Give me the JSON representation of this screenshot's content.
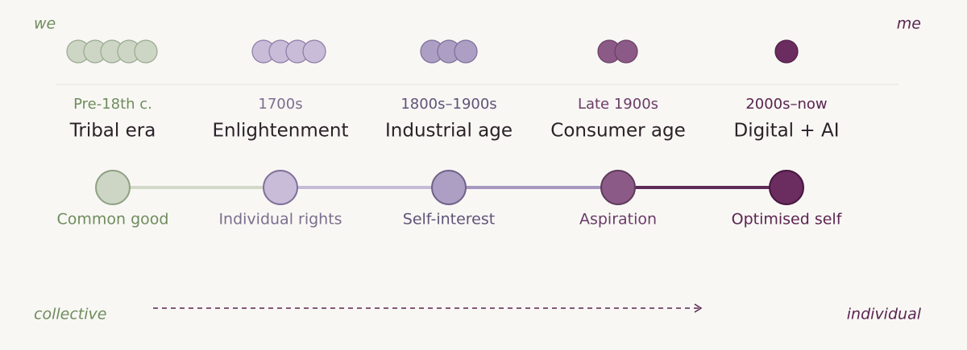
{
  "corners": {
    "top_left": "we",
    "top_right": "me",
    "bottom_left": "collective",
    "bottom_right": "individual"
  },
  "eras": [
    {
      "period": "Pre-18th c.",
      "name": "Tribal era",
      "value": "Common good"
    },
    {
      "period": "1700s",
      "name": "Enlightenment",
      "value": "Individual rights"
    },
    {
      "period": "1800s–1900s",
      "name": "Industrial age",
      "value": "Self-interest"
    },
    {
      "period": "Late 1900s",
      "name": "Consumer age",
      "value": "Aspiration"
    },
    {
      "period": "2000s–now",
      "name": "Digital + AI",
      "value": "Optimised self"
    }
  ]
}
